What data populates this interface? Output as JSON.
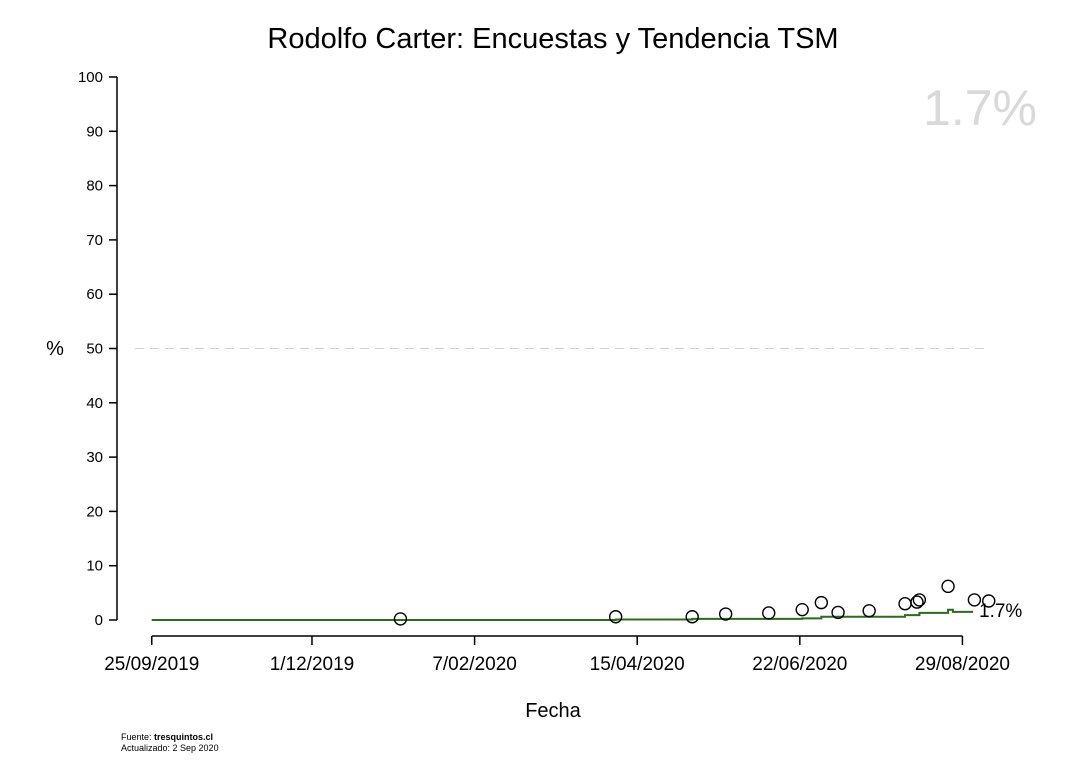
{
  "chart_data": {
    "type": "scatter",
    "title": "Rodolfo Carter: Encuestas y Tendencia TSM",
    "xlabel": "Fecha",
    "ylabel": "%",
    "ylim": [
      0,
      100
    ],
    "yticks": [
      0,
      10,
      20,
      30,
      40,
      50,
      60,
      70,
      80,
      90,
      100
    ],
    "xticks": [
      "25/09/2019",
      "1/12/2019",
      "7/02/2020",
      "15/04/2020",
      "22/06/2020",
      "29/08/2020"
    ],
    "xlim": [
      "2019-09-18",
      "2020-09-02"
    ],
    "reference_line": 50,
    "grid": false,
    "current_value_label": "1.7%",
    "end_label": "1.7%",
    "series": [
      {
        "kind": "points",
        "color": "#000000",
        "x": [
          "2020-01-07",
          "2020-04-06",
          "2020-05-08",
          "2020-05-22",
          "2020-06-09",
          "2020-06-23",
          "2020-07-01",
          "2020-07-08",
          "2020-07-21",
          "2020-08-05",
          "2020-08-10",
          "2020-08-11",
          "2020-08-23",
          "2020-09-03",
          "2020-09-09"
        ],
        "y": [
          0.2,
          0.6,
          0.6,
          1.1,
          1.3,
          1.9,
          3.2,
          1.4,
          1.7,
          3.0,
          3.3,
          3.7,
          6.2,
          3.7,
          3.5
        ]
      },
      {
        "kind": "trend-step",
        "color": "#2d6a1e",
        "x": [
          "2019-09-25",
          "2020-04-06",
          "2020-05-08",
          "2020-06-23",
          "2020-07-01",
          "2020-08-05",
          "2020-08-11",
          "2020-08-23",
          "2020-08-25",
          "2020-09-02"
        ],
        "y": [
          0.0,
          0.1,
          0.2,
          0.3,
          0.6,
          0.9,
          1.3,
          1.9,
          1.5,
          1.7
        ]
      }
    ]
  },
  "footer": {
    "source_prefix": "Fuente: ",
    "source_name": "tresquintos.cl",
    "updated": "Actualizado: 2 Sep 2020"
  }
}
